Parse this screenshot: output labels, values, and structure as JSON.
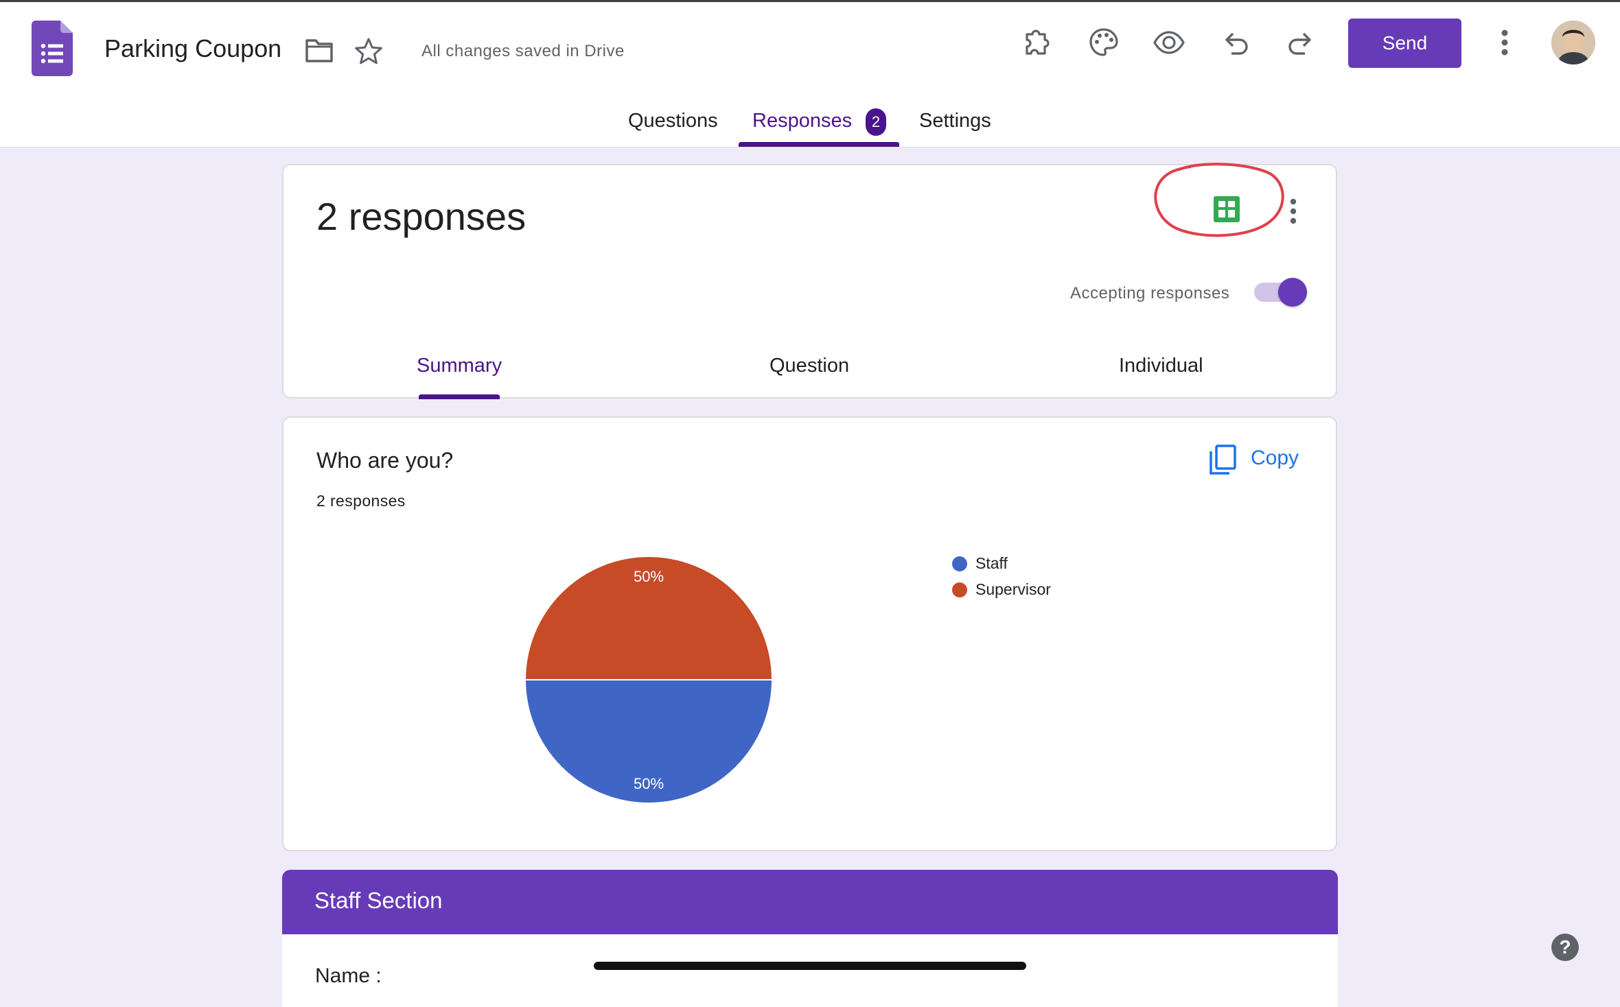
{
  "app": {
    "doc_title": "Parking Coupon",
    "save_status": "All changes saved in Drive",
    "icons": [
      "forms-logo-icon",
      "folder-icon",
      "star-icon",
      "addon-puzzle-icon",
      "palette-icon",
      "eye-preview-icon",
      "undo-icon",
      "redo-icon",
      "more-vert-icon",
      "avatar"
    ],
    "send_label": "Send",
    "accent": "#673ab7"
  },
  "tabs": [
    {
      "label": "Questions"
    },
    {
      "label": "Responses",
      "badge": "2"
    },
    {
      "label": "Settings"
    }
  ],
  "responses": {
    "count_label": "2 responses",
    "accepting_label": "Accepting responses",
    "accepting": true,
    "subtabs": [
      {
        "label": "Summary"
      },
      {
        "label": "Question"
      },
      {
        "label": "Individual"
      }
    ]
  },
  "question": {
    "title": "Who are you?",
    "count": "2 responses",
    "copy_label": "Copy"
  },
  "chart_data": {
    "type": "pie",
    "categories": [
      "Staff",
      "Supervisor"
    ],
    "values": [
      50,
      50
    ],
    "labels": [
      "50%",
      "50%"
    ],
    "colors": [
      "#3f66c5",
      "#c84b27"
    ],
    "legend": "right"
  },
  "section": {
    "title": "Staff Section",
    "first_question": "Name :"
  }
}
